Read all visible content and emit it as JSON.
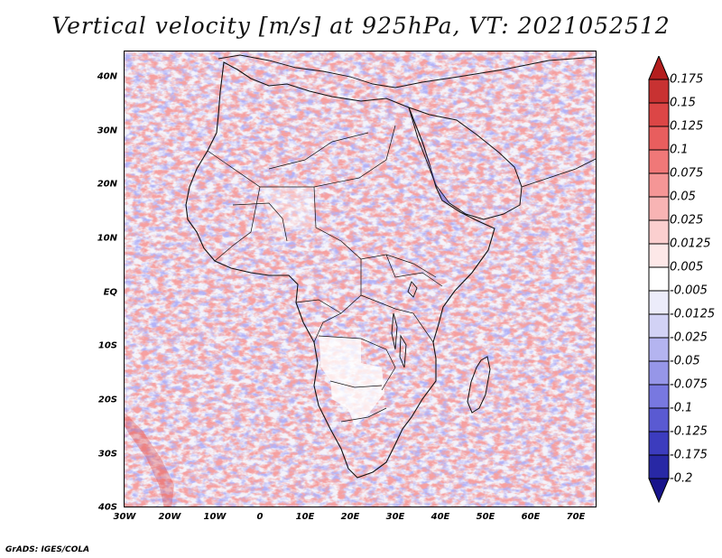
{
  "title": "Vertical velocity [m/s] at 925hPa, VT: 2021052512",
  "credit": "GrADS: IGES/COLA",
  "map": {
    "variable": "vertical velocity",
    "level": "925hPa",
    "valid_time": "2021052512",
    "lat_ticks": [
      "40N",
      "30N",
      "20N",
      "10N",
      "EQ",
      "10S",
      "20S",
      "30S",
      "40S"
    ],
    "lon_ticks": [
      "30W",
      "20W",
      "10W",
      "0",
      "10E",
      "20E",
      "30E",
      "40E",
      "50E",
      "60E",
      "70E"
    ]
  },
  "colorbar": {
    "labels": [
      "0.175",
      "0.15",
      "0.125",
      "0.1",
      "0.075",
      "0.05",
      "0.025",
      "0.0125",
      "0.005",
      "-0.005",
      "-0.0125",
      "-0.025",
      "-0.05",
      "-0.075",
      "-0.1",
      "-0.125",
      "-0.175",
      "-0.2"
    ],
    "colors": [
      "#b41e1e",
      "#c83232",
      "#dc4646",
      "#e85e5e",
      "#f07878",
      "#f59696",
      "#f8b4b4",
      "#fbcfcf",
      "#fde8e8",
      "#ffffff",
      "#ececfa",
      "#d2d2f5",
      "#b4b4f0",
      "#9696e8",
      "#7878e0",
      "#5a5ad2",
      "#3c3cbe",
      "#2828a5",
      "#18148c"
    ]
  }
}
